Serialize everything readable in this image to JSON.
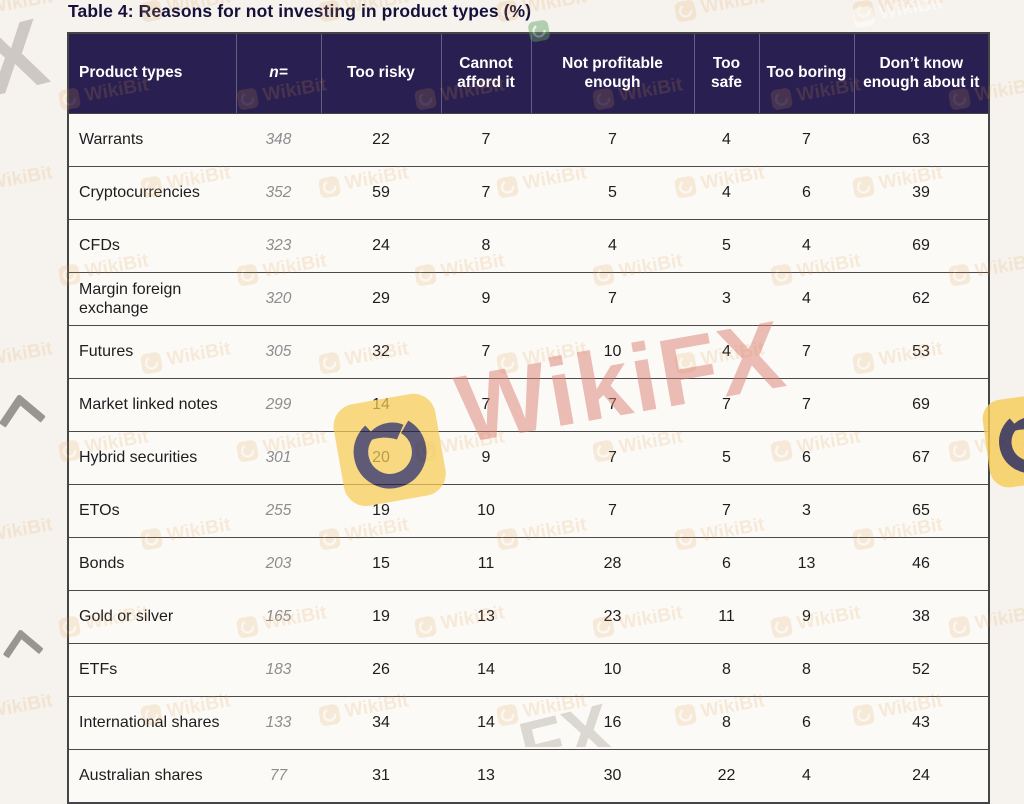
{
  "title": "Table 4: Reasons for not investing in product types (%)",
  "table": {
    "columns": [
      {
        "label": "Product types"
      },
      {
        "label": "n="
      },
      {
        "label": "Too risky"
      },
      {
        "label": "Cannot afford it"
      },
      {
        "label": "Not profitable enough"
      },
      {
        "label": "Too safe"
      },
      {
        "label": "Too boring"
      },
      {
        "label": "Don’t know enough about it"
      }
    ],
    "rows": [
      {
        "product": "Warrants",
        "n": "348",
        "values": [
          "22",
          "7",
          "7",
          "4",
          "7",
          "63"
        ]
      },
      {
        "product": "Cryptocurrencies",
        "n": "352",
        "values": [
          "59",
          "7",
          "5",
          "4",
          "6",
          "39"
        ]
      },
      {
        "product": "CFDs",
        "n": "323",
        "values": [
          "24",
          "8",
          "4",
          "5",
          "4",
          "69"
        ]
      },
      {
        "product": "Margin foreign exchange",
        "n": "320",
        "values": [
          "29",
          "9",
          "7",
          "3",
          "4",
          "62"
        ]
      },
      {
        "product": "Futures",
        "n": "305",
        "values": [
          "32",
          "7",
          "10",
          "4",
          "7",
          "53"
        ]
      },
      {
        "product": "Market linked notes",
        "n": "299",
        "values": [
          "14",
          "7",
          "7",
          "7",
          "7",
          "69"
        ]
      },
      {
        "product": "Hybrid securities",
        "n": "301",
        "values": [
          "20",
          "9",
          "7",
          "5",
          "6",
          "67"
        ]
      },
      {
        "product": "ETOs",
        "n": "255",
        "values": [
          "19",
          "10",
          "7",
          "7",
          "3",
          "65"
        ]
      },
      {
        "product": "Bonds",
        "n": "203",
        "values": [
          "15",
          "11",
          "28",
          "6",
          "13",
          "46"
        ]
      },
      {
        "product": "Gold or silver",
        "n": "165",
        "values": [
          "19",
          "13",
          "23",
          "11",
          "9",
          "38"
        ]
      },
      {
        "product": "ETFs",
        "n": "183",
        "values": [
          "26",
          "14",
          "10",
          "8",
          "8",
          "52"
        ]
      },
      {
        "product": "International shares",
        "n": "133",
        "values": [
          "34",
          "14",
          "16",
          "8",
          "6",
          "43"
        ]
      },
      {
        "product": "Australian shares",
        "n": "77",
        "values": [
          "31",
          "13",
          "30",
          "22",
          "4",
          "24"
        ]
      }
    ]
  },
  "chart_data": {
    "type": "table",
    "title": "Table 4: Reasons for not investing in product types (%)",
    "columns": [
      "Product types",
      "n=",
      "Too risky",
      "Cannot afford it",
      "Not profitable enough",
      "Too safe",
      "Too boring",
      "Don’t know enough about it"
    ],
    "rows": [
      [
        "Warrants",
        348,
        22,
        7,
        7,
        4,
        7,
        63
      ],
      [
        "Cryptocurrencies",
        352,
        59,
        7,
        5,
        4,
        6,
        39
      ],
      [
        "CFDs",
        323,
        24,
        8,
        4,
        5,
        4,
        69
      ],
      [
        "Margin foreign exchange",
        320,
        29,
        9,
        7,
        3,
        4,
        62
      ],
      [
        "Futures",
        305,
        32,
        7,
        10,
        4,
        7,
        53
      ],
      [
        "Market linked notes",
        299,
        14,
        7,
        7,
        7,
        7,
        69
      ],
      [
        "Hybrid securities",
        301,
        20,
        9,
        7,
        5,
        6,
        67
      ],
      [
        "ETOs",
        255,
        19,
        10,
        7,
        7,
        3,
        65
      ],
      [
        "Bonds",
        203,
        15,
        11,
        28,
        6,
        13,
        46
      ],
      [
        "Gold or silver",
        165,
        19,
        13,
        23,
        11,
        9,
        38
      ],
      [
        "ETFs",
        183,
        26,
        14,
        10,
        8,
        8,
        52
      ],
      [
        "International shares",
        133,
        34,
        14,
        16,
        8,
        6,
        43
      ],
      [
        "Australian shares",
        77,
        31,
        13,
        30,
        22,
        4,
        24
      ]
    ]
  },
  "watermarks": {
    "wikibit_label": "WikiBit",
    "wikifx_label": "WikiFX",
    "fx_fragment": "FX",
    "corner_x_label": "X"
  },
  "colors": {
    "header_bg": "#292051",
    "watermark_orange": "#e8953f",
    "watermark_yellow": "#f7cd56",
    "watermark_pink": "#dd7f72",
    "page_bg": "#f6f3ee"
  }
}
